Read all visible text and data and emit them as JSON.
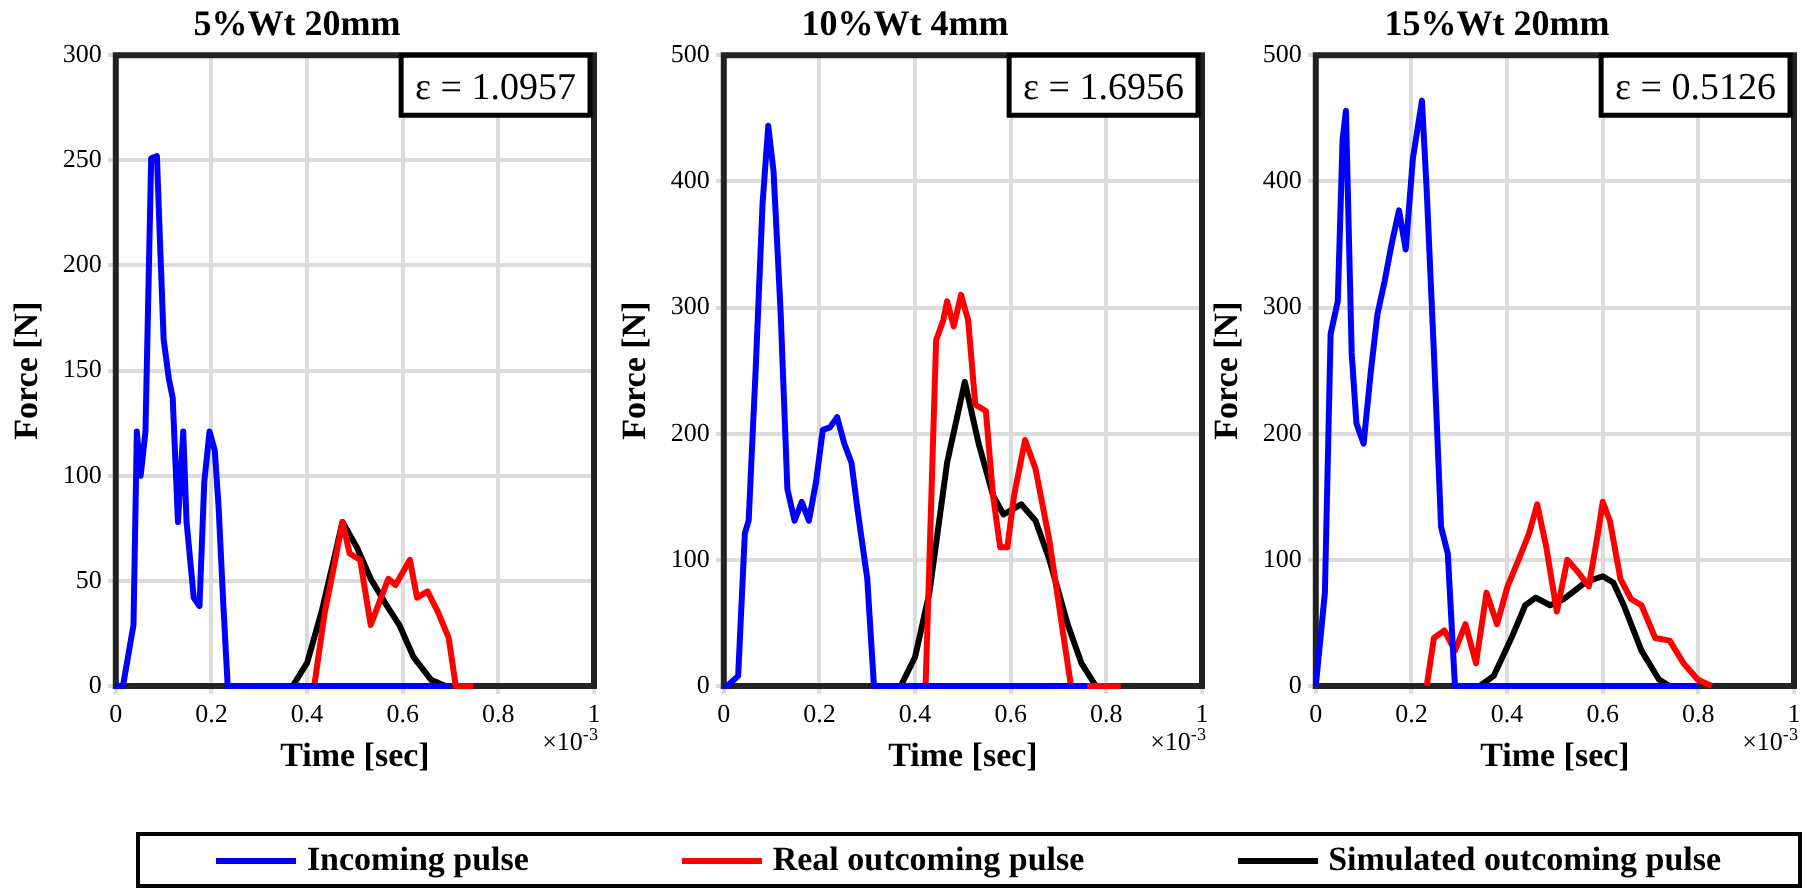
{
  "chart_data": [
    {
      "type": "line",
      "title": "5%Wt 20mm",
      "xlabel": "Time [sec]",
      "ylabel": "Force [N]",
      "annotations": [
        "ε = 1.0957",
        "×10$^{-3}$"
      ],
      "xlim": [
        0,
        1
      ],
      "xticks": [
        0,
        0.2,
        0.4,
        0.6,
        0.8,
        1
      ],
      "ylim": [
        0,
        300
      ],
      "yticks": [
        0,
        50,
        100,
        150,
        200,
        250,
        300
      ],
      "grid": true,
      "legend": "bottom",
      "series": [
        {
          "name": "Incoming pulse",
          "color": "#0000ff",
          "x": [
            0,
            0.015,
            0.037,
            0.044,
            0.052,
            0.062,
            0.074,
            0.086,
            0.092,
            0.1,
            0.111,
            0.119,
            0.13,
            0.141,
            0.148,
            0.163,
            0.175,
            0.185,
            0.196,
            0.207,
            0.215,
            0.225,
            0.234,
            0.7
          ],
          "values": [
            0,
            0,
            29,
            121,
            100,
            121,
            251,
            252,
            214,
            165,
            146,
            137,
            78,
            121,
            78,
            42,
            38,
            97,
            121,
            112,
            85,
            38,
            0,
            0
          ]
        },
        {
          "name": "Real outcoming pulse",
          "color": "#ff0000",
          "x": [
            0.3,
            0.415,
            0.437,
            0.459,
            0.474,
            0.489,
            0.511,
            0.533,
            0.548,
            0.57,
            0.585,
            0.615,
            0.63,
            0.652,
            0.674,
            0.696,
            0.711,
            0.748
          ],
          "values": [
            0,
            0,
            35,
            60,
            78,
            63,
            60,
            29,
            38,
            51,
            48,
            60,
            42,
            45,
            35,
            23,
            0,
            0
          ]
        },
        {
          "name": "Simulated outcoming pulse",
          "color": "#000000",
          "x": [
            0.37,
            0.4,
            0.43,
            0.459,
            0.474,
            0.504,
            0.533,
            0.57,
            0.593,
            0.622,
            0.659,
            0.689
          ],
          "values": [
            0,
            11,
            35,
            63,
            78,
            66,
            51,
            37,
            29,
            14,
            3,
            0
          ]
        }
      ]
    },
    {
      "type": "line",
      "title": "10%Wt 4mm",
      "xlabel": "Time [sec]",
      "ylabel": "Force [N]",
      "annotations": [
        "ε = 1.6956",
        "×10$^{-3}$"
      ],
      "xlim": [
        0,
        1
      ],
      "xticks": [
        0,
        0.2,
        0.4,
        0.6,
        0.8,
        1
      ],
      "ylim": [
        0,
        500
      ],
      "yticks": [
        0,
        100,
        200,
        300,
        400,
        500
      ],
      "grid": true,
      "series": [
        {
          "color": "#0000ff",
          "x": [
            0,
            0.007,
            0.03,
            0.044,
            0.052,
            0.067,
            0.081,
            0.093,
            0.104,
            0.119,
            0.133,
            0.148,
            0.163,
            0.178,
            0.193,
            0.207,
            0.222,
            0.237,
            0.252,
            0.267,
            0.281,
            0.3,
            0.314,
            0.76
          ],
          "values": [
            0,
            0,
            8,
            121,
            131,
            254,
            382,
            444,
            408,
            295,
            156,
            131,
            146,
            131,
            162,
            203,
            205,
            213,
            192,
            177,
            136,
            85,
            0,
            0
          ]
        },
        {
          "color": "#ff0000",
          "x": [
            0.311,
            0.422,
            0.444,
            0.459,
            0.467,
            0.481,
            0.496,
            0.511,
            0.526,
            0.548,
            0.563,
            0.578,
            0.593,
            0.607,
            0.63,
            0.652,
            0.681,
            0.711,
            0.726,
            0.83
          ],
          "values": [
            0,
            0,
            274,
            290,
            305,
            285,
            310,
            290,
            223,
            218,
            151,
            110,
            110,
            151,
            195,
            172,
            115,
            38,
            0,
            0
          ]
        },
        {
          "color": "#000000",
          "x": [
            0.37,
            0.4,
            0.43,
            0.467,
            0.504,
            0.533,
            0.563,
            0.585,
            0.622,
            0.652,
            0.681,
            0.719,
            0.748,
            0.778
          ],
          "values": [
            0,
            23,
            74,
            177,
            241,
            192,
            151,
            136,
            144,
            131,
            100,
            49,
            18,
            0
          ]
        }
      ]
    },
    {
      "type": "line",
      "title": "15%Wt 20mm",
      "xlabel": "Time [sec]",
      "ylabel": "Force [N]",
      "annotations": [
        "ε = 0.5126",
        "×10$^{-3}$"
      ],
      "xlim": [
        0,
        1
      ],
      "xticks": [
        0,
        0.2,
        0.4,
        0.6,
        0.8,
        1
      ],
      "ylim": [
        0,
        500
      ],
      "yticks": [
        0,
        100,
        200,
        300,
        400,
        500
      ],
      "grid": true,
      "series": [
        {
          "color": "#0000ff",
          "x": [
            0,
            0.019,
            0.031,
            0.046,
            0.056,
            0.063,
            0.075,
            0.085,
            0.1,
            0.115,
            0.129,
            0.144,
            0.159,
            0.174,
            0.188,
            0.203,
            0.222,
            0.232,
            0.247,
            0.262,
            0.276,
            0.291,
            0.8
          ],
          "values": [
            0,
            74,
            279,
            305,
            433,
            456,
            264,
            208,
            192,
            249,
            295,
            321,
            351,
            377,
            346,
            418,
            464,
            392,
            264,
            126,
            105,
            0,
            0
          ]
        },
        {
          "color": "#ff0000",
          "x": [
            0.232,
            0.247,
            0.269,
            0.291,
            0.313,
            0.335,
            0.357,
            0.379,
            0.401,
            0.424,
            0.446,
            0.463,
            0.482,
            0.504,
            0.526,
            0.549,
            0.571,
            0.59,
            0.6,
            0.615,
            0.637,
            0.659,
            0.681,
            0.71,
            0.74,
            0.769,
            0.799,
            0.828
          ],
          "values": [
            0,
            38,
            44,
            28,
            49,
            18,
            74,
            49,
            79,
            100,
            121,
            144,
            110,
            59,
            100,
            90,
            79,
            121,
            146,
            131,
            85,
            69,
            64,
            38,
            36,
            18,
            5,
            0
          ]
        },
        {
          "color": "#000000",
          "x": [
            0.343,
            0.372,
            0.409,
            0.438,
            0.46,
            0.49,
            0.519,
            0.563,
            0.6,
            0.622,
            0.644,
            0.681,
            0.718,
            0.74
          ],
          "values": [
            0,
            8,
            38,
            64,
            70,
            64,
            69,
            82,
            87,
            82,
            64,
            28,
            5,
            0
          ]
        }
      ]
    }
  ]
}
